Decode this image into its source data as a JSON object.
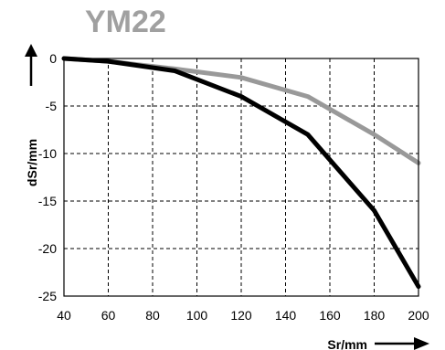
{
  "chart_data": {
    "type": "line",
    "title": "YM22",
    "xlabel": "Sr/mm",
    "ylabel": "dSr/mm",
    "xlim": [
      40,
      200
    ],
    "ylim": [
      -25,
      0
    ],
    "xticks": [
      40,
      60,
      80,
      100,
      120,
      140,
      160,
      180,
      200
    ],
    "yticks": [
      0,
      -5,
      -10,
      -15,
      -20,
      -25
    ],
    "grid": true,
    "grid_style": "dashed",
    "series": [
      {
        "color": "#000000",
        "x": [
          40,
          60,
          90,
          120,
          150,
          180,
          200
        ],
        "y": [
          0,
          -0.3,
          -1.3,
          -4,
          -8,
          -16,
          -24
        ]
      },
      {
        "color": "#999999",
        "x": [
          40,
          60,
          90,
          120,
          150,
          180,
          200
        ],
        "y": [
          0,
          -0.3,
          -1.1,
          -2,
          -4,
          -8,
          -11
        ]
      }
    ]
  }
}
